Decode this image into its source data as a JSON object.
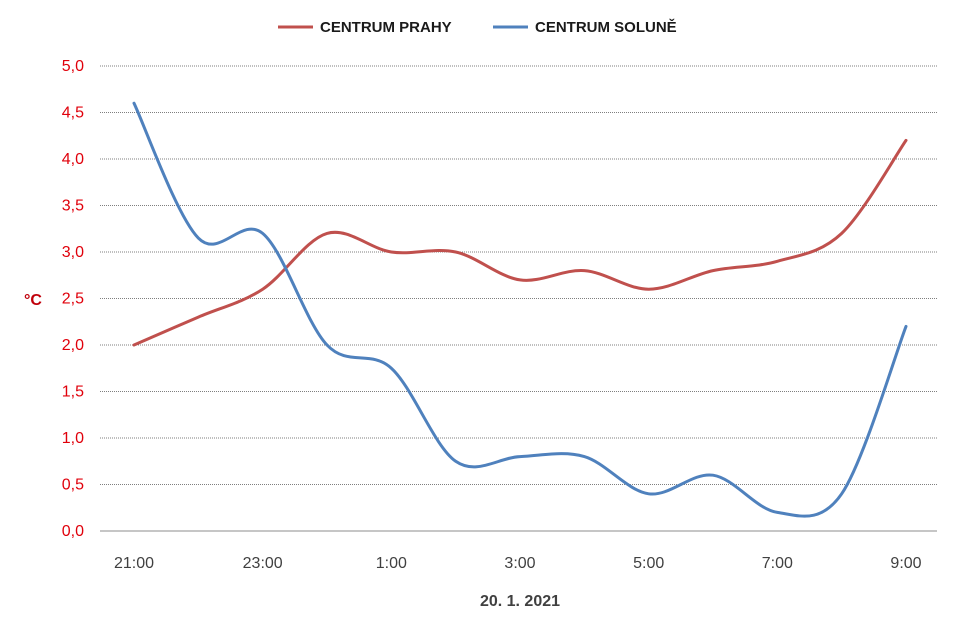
{
  "chart_data": {
    "type": "line",
    "x": [
      "21:00",
      "22:00",
      "23:00",
      "0:00",
      "1:00",
      "2:00",
      "3:00",
      "4:00",
      "5:00",
      "6:00",
      "7:00",
      "8:00",
      "9:00"
    ],
    "x_tick_labels": [
      "21:00",
      "23:00",
      "1:00",
      "3:00",
      "5:00",
      "7:00",
      "9:00"
    ],
    "xlabel": "20. 1. 2021",
    "ylabel": "°C",
    "ylim": [
      0,
      5
    ],
    "y_tick_labels": [
      "0,0",
      "0,5",
      "1,0",
      "1,5",
      "2,0",
      "2,5",
      "3,0",
      "3,5",
      "4,0",
      "4,5",
      "5,0"
    ],
    "grid": "horizontal",
    "legend": "top-center",
    "series": [
      {
        "name": "CENTRUM PRAHY",
        "color": "#c0504d",
        "values": [
          2.0,
          2.3,
          2.6,
          3.2,
          3.0,
          3.0,
          2.7,
          2.8,
          2.6,
          2.8,
          2.9,
          3.2,
          4.2
        ]
      },
      {
        "name": "CENTRUM SOLUNĚ",
        "color": "#4f81bd",
        "values": [
          4.6,
          3.15,
          3.2,
          2.0,
          1.75,
          0.75,
          0.8,
          0.8,
          0.4,
          0.6,
          0.2,
          0.4,
          2.2
        ]
      }
    ]
  }
}
